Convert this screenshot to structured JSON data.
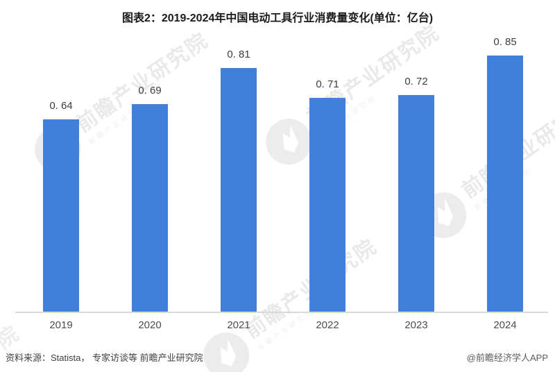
{
  "title": "图表2：2019-2024年中国电动工具行业消费量变化(单位：亿台)",
  "chart_data": {
    "type": "bar",
    "title": "图表2：2019-2024年中国电动工具行业消费量变化(单位：亿台)",
    "unit": "亿台",
    "categories": [
      "2019",
      "2020",
      "2021",
      "2022",
      "2023",
      "2024"
    ],
    "values": [
      0.64,
      0.69,
      0.81,
      0.71,
      0.72,
      0.85
    ],
    "value_labels": [
      "0. 64",
      "0. 69",
      "0. 81",
      "0. 71",
      "0. 72",
      "0. 85"
    ],
    "xlabel": "",
    "ylabel": "",
    "ylim": [
      0,
      1.0
    ],
    "grid": false,
    "legend": false,
    "bar_color": "#4080dc",
    "axis_color": "#d9d9d9"
  },
  "footer": {
    "source": "资料来源：Statista， 专家访谈等 前瞻产业研究院",
    "credit": "@前瞻经济学人APP"
  },
  "watermark": {
    "text": "前瞻产业研究院",
    "subtext": "前瞻产业研究院",
    "partial": "院"
  }
}
